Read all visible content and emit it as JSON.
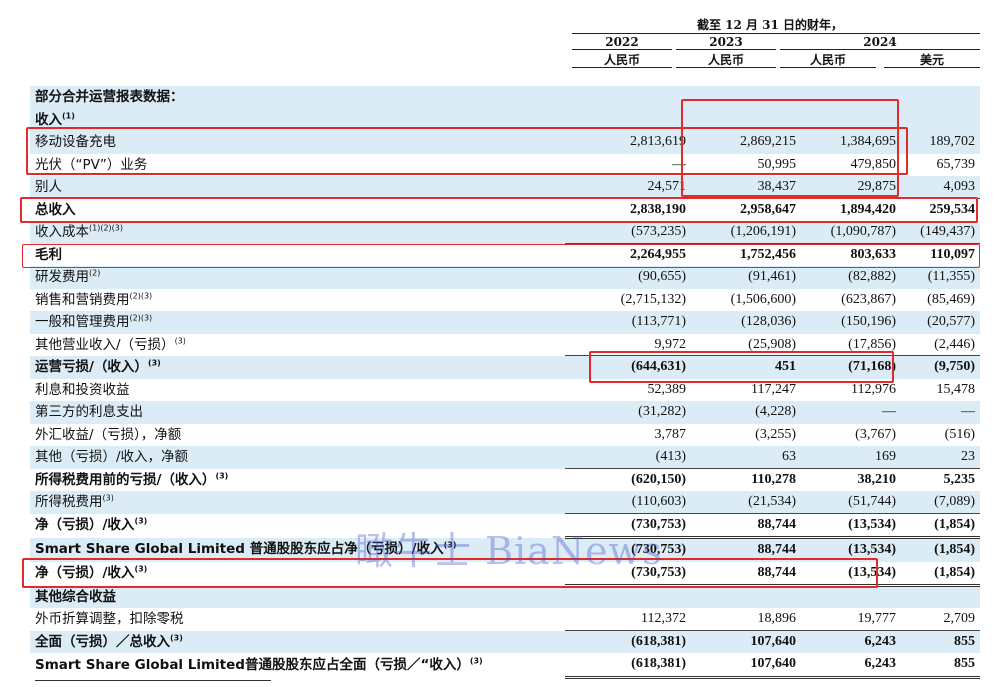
{
  "header": {
    "period_title": "截至 12 月 31 日的财年，",
    "years": [
      "2022",
      "2023",
      "2024"
    ],
    "currency_labels": [
      "人民币",
      "人民币",
      "人民币",
      "美元"
    ]
  },
  "rows": [
    {
      "label": "部分合并运营报表数据：",
      "sup": "",
      "v": [
        "",
        "",
        "",
        ""
      ]
    },
    {
      "label": "收入",
      "sup": "(1)",
      "v": [
        "",
        "",
        "",
        ""
      ]
    },
    {
      "label": "移动设备充电",
      "sup": "",
      "v": [
        "2,813,619",
        "2,869,215",
        "1,384,695",
        "189,702"
      ]
    },
    {
      "label": "光伏（“PV”）业务",
      "sup": "",
      "v": [
        "—",
        "50,995",
        "479,850",
        "65,739"
      ]
    },
    {
      "label": "别人",
      "sup": "",
      "v": [
        "24,571",
        "38,437",
        "29,875",
        "4,093"
      ]
    },
    {
      "label": "总收入",
      "sup": "",
      "v": [
        "2,838,190",
        "2,958,647",
        "1,894,420",
        "259,534"
      ]
    },
    {
      "label": "收入成本",
      "sup": "(1)(2)(3)",
      "v": [
        "(573,235)",
        "(1,206,191)",
        "(1,090,787)",
        "(149,437)"
      ]
    },
    {
      "label": "毛利",
      "sup": "",
      "v": [
        "2,264,955",
        "1,752,456",
        "803,633",
        "110,097"
      ]
    },
    {
      "label": "研发费用",
      "sup": "(2)",
      "v": [
        "(90,655)",
        "(91,461)",
        "(82,882)",
        "(11,355)"
      ]
    },
    {
      "label": "销售和营销费用",
      "sup": "(2)(3)",
      "v": [
        "(2,715,132)",
        "(1,506,600)",
        "(623,867)",
        "(85,469)"
      ]
    },
    {
      "label": "一般和管理费用",
      "sup": "(2)(3)",
      "v": [
        "(113,771)",
        "(128,036)",
        "(150,196)",
        "(20,577)"
      ]
    },
    {
      "label": "其他营业收入/（亏损）",
      "sup": "(3)",
      "v": [
        "9,972",
        "(25,908)",
        "(17,856)",
        "(2,446)"
      ]
    },
    {
      "label": "运营亏损/（收入）",
      "sup": "(3)",
      "v": [
        "(644,631)",
        "451",
        "(71,168)",
        "(9,750)"
      ]
    },
    {
      "label": "利息和投资收益",
      "sup": "",
      "v": [
        "52,389",
        "117,247",
        "112,976",
        "15,478"
      ]
    },
    {
      "label": "第三方的利息支出",
      "sup": "",
      "v": [
        "(31,282)",
        "(4,228)",
        "—",
        "—"
      ]
    },
    {
      "label": "外汇收益/（亏损），净额",
      "sup": "",
      "v": [
        "3,787",
        "(3,255)",
        "(3,767)",
        "(516)"
      ]
    },
    {
      "label": "其他（亏损）/收入，净额",
      "sup": "",
      "v": [
        "(413)",
        "63",
        "169",
        "23"
      ]
    },
    {
      "label": "所得税费用前的亏损/（收入）",
      "sup": "(3)",
      "v": [
        "(620,150)",
        "110,278",
        "38,210",
        "5,235"
      ]
    },
    {
      "label": "所得税费用",
      "sup": "(3)",
      "v": [
        "(110,603)",
        "(21,534)",
        "(51,744)",
        "(7,089)"
      ]
    },
    {
      "label": "净（亏损）/收入",
      "sup": "(3)",
      "v": [
        "(730,753)",
        "88,744",
        "(13,534)",
        "(1,854)"
      ]
    },
    {
      "label": "Smart Share Global Limited 普通股股东应占净（亏损）/收入",
      "sup": "(3)",
      "v": [
        "(730,753)",
        "88,744",
        "(13,534)",
        "(1,854)"
      ]
    },
    {
      "label": "净（亏损）/收入",
      "sup": "(3)",
      "v": [
        "(730,753)",
        "88,744",
        "(13,534)",
        "(1,854)"
      ]
    },
    {
      "label": "其他综合收益",
      "sup": "",
      "v": [
        "",
        "",
        "",
        ""
      ]
    },
    {
      "label": "外币折算调整，扣除零税",
      "sup": "",
      "v": [
        "112,372",
        "18,896",
        "19,777",
        "2,709"
      ]
    },
    {
      "label": "全面（亏损）／总收入",
      "sup": "(3)",
      "v": [
        "(618,381)",
        "107,640",
        "6,243",
        "855"
      ]
    },
    {
      "label": "Smart Share Global Limited普通股股东应占全面（亏损／“收入）",
      "sup": "(3)",
      "v": [
        "(618,381)",
        "107,640",
        "6,243",
        "855"
      ]
    }
  ],
  "watermark": "瞰牛士 BiaNews"
}
